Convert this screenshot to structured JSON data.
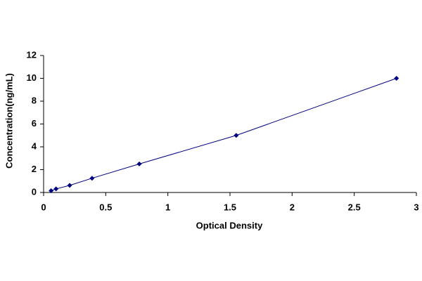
{
  "chart_data": {
    "type": "line",
    "x_label": "Optical Density",
    "y_label": "Concentration(ng/mL)",
    "x": [
      0.06,
      0.1,
      0.21,
      0.39,
      0.77,
      1.55,
      2.84
    ],
    "values": [
      0.156,
      0.312,
      0.625,
      1.25,
      2.5,
      5,
      10
    ],
    "color": "#000080",
    "xlim": [
      0,
      3
    ],
    "xticks": [
      0,
      0.5,
      1,
      1.5,
      2,
      2.5,
      3
    ],
    "ylim": [
      0,
      12
    ],
    "yticks": [
      0,
      2,
      4,
      6,
      8,
      10,
      12
    ],
    "grid": false
  }
}
